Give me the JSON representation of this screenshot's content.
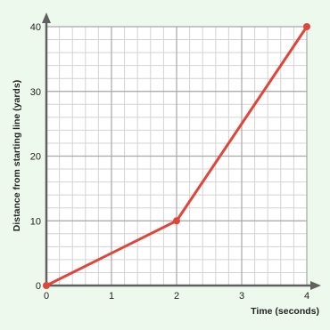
{
  "chart_data": {
    "type": "line",
    "title": "",
    "xlabel": "Time (seconds)",
    "ylabel": "Distance from starting line (yards)",
    "xlim": [
      0,
      4
    ],
    "ylim": [
      0,
      40
    ],
    "x_ticks": [
      "0",
      "1",
      "2",
      "3",
      "4"
    ],
    "y_ticks": [
      "0",
      "10",
      "20",
      "30",
      "40"
    ],
    "grid": true,
    "minor_grid_step_x": 0.2,
    "minor_grid_step_y": 2,
    "series": [
      {
        "color": "#e0453a",
        "points": [
          {
            "x": 0,
            "y": 0
          },
          {
            "x": 2,
            "y": 10
          },
          {
            "x": 4,
            "y": 40
          }
        ]
      }
    ],
    "colors": {
      "background": "#eef9ee",
      "plot_background": "#ffffff",
      "major_grid": "#a8a8a8",
      "minor_grid": "#d3d3d3",
      "axis": "#606060",
      "line": "#e0453a"
    }
  }
}
